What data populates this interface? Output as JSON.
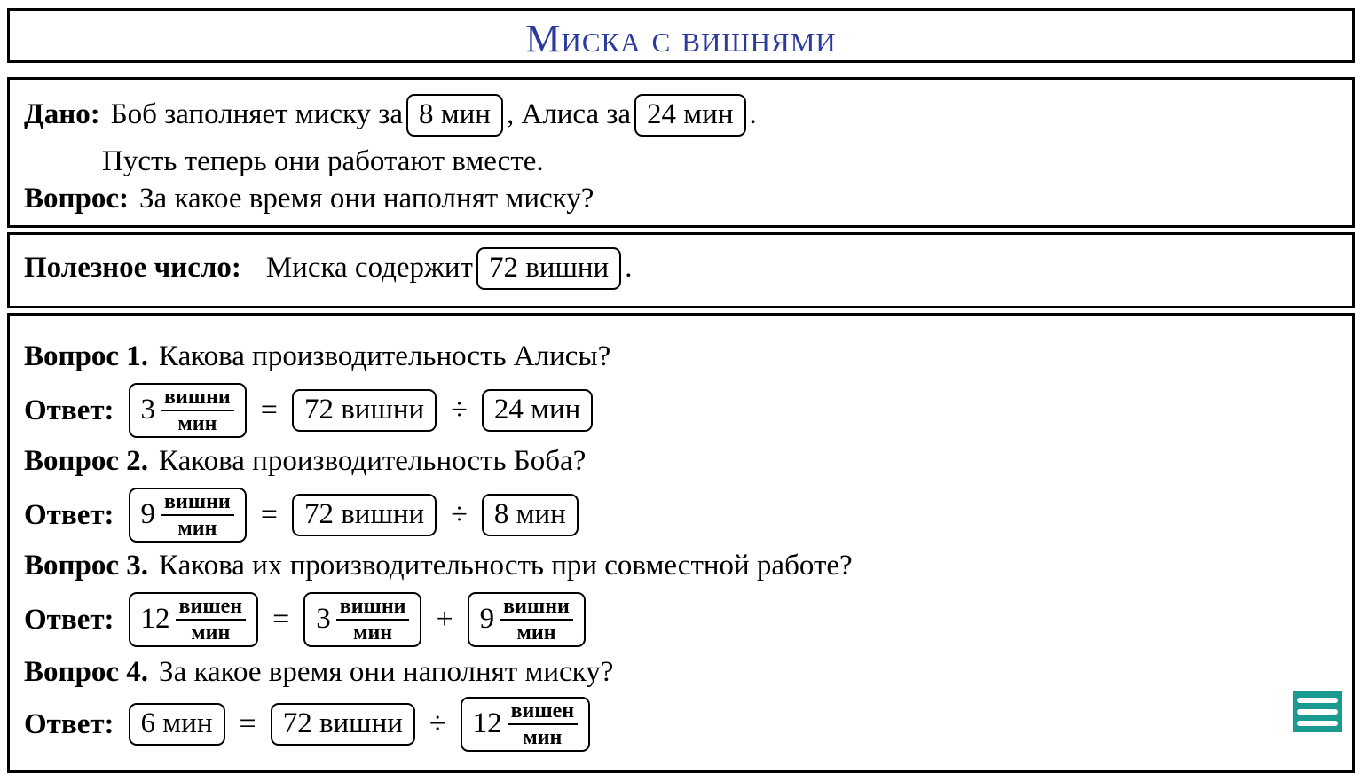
{
  "title": "Миска с вишнями",
  "given": {
    "label": "Дано:",
    "text1": "Боб заполняет миску за",
    "bob_time": "8 мин",
    "text2": ", Алиса за",
    "alice_time": "24 мин",
    "text3": ".",
    "line2": "Пусть теперь они работают вместе.",
    "question_label": "Вопрос:",
    "question": "За какое время они наполнят миску?"
  },
  "useful": {
    "label": "Полезное число:",
    "text": "Миска содержит",
    "value": "72 вишни",
    "end": "."
  },
  "answer_label": "Ответ:",
  "questions": [
    {
      "label": "Вопрос 1.",
      "text": "Какова производительность Алисы?",
      "answer": {
        "num": "3",
        "unit_n": "вишни",
        "unit_d": "мин",
        "op1": "=",
        "a": "72 вишни",
        "op2": "÷",
        "b": "24 мин"
      }
    },
    {
      "label": "Вопрос 2.",
      "text": "Какова производительность Боба?",
      "answer": {
        "num": "9",
        "unit_n": "вишни",
        "unit_d": "мин",
        "op1": "=",
        "a": "72 вишни",
        "op2": "÷",
        "b": "8 мин"
      }
    },
    {
      "label": "Вопрос 3.",
      "text": "Какова их производительность при совместной работе?",
      "answer": {
        "num": "12",
        "unit_n": "вишен",
        "unit_d": "мин",
        "op1": "=",
        "a_num": "3",
        "a_n": "вишни",
        "a_d": "мин",
        "op2": "+",
        "b_num": "9",
        "b_n": "вишни",
        "b_d": "мин"
      }
    },
    {
      "label": "Вопрос 4.",
      "text": "За какое время они наполнят миску?",
      "answer": {
        "res": "6 мин",
        "op1": "=",
        "a": "72 вишни",
        "op2": "÷",
        "b_num": "12",
        "b_n": "вишен",
        "b_d": "мин"
      }
    }
  ],
  "icons": {
    "menu": "menu-icon",
    "menu_color": "#1a9a90",
    "title_color": "#2a3a9e"
  }
}
